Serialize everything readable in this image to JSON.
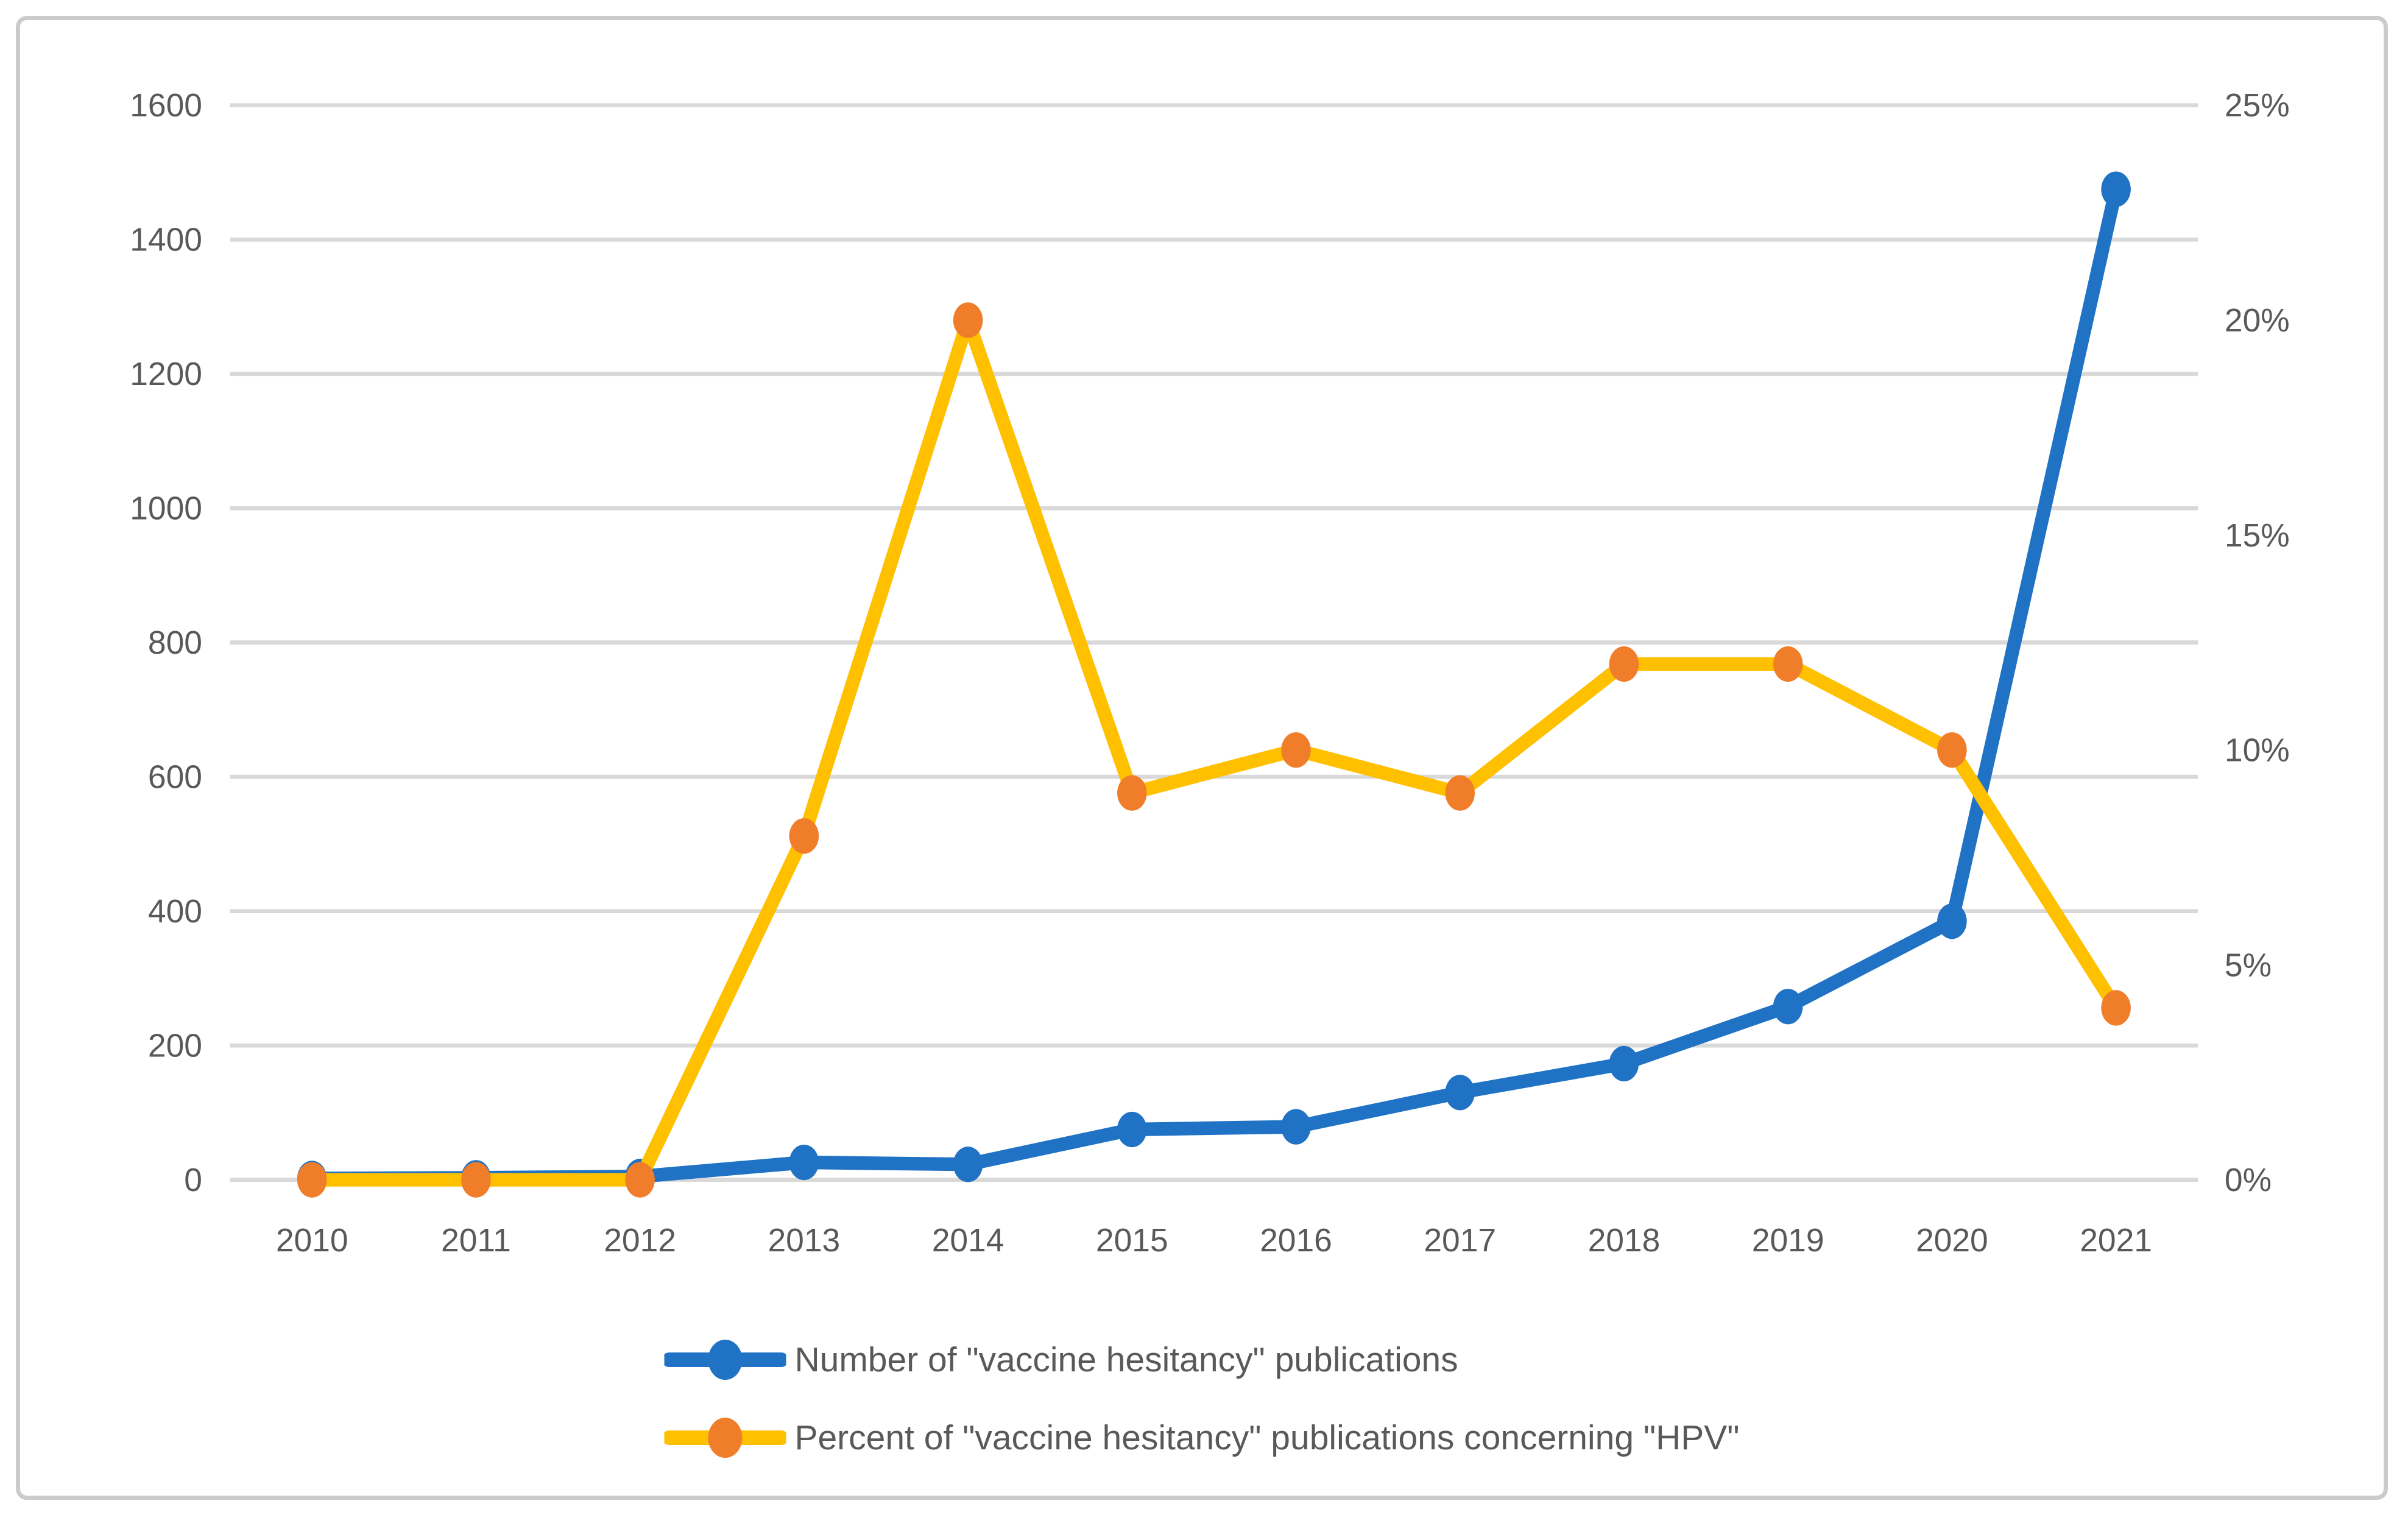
{
  "chart_data": {
    "type": "line",
    "title": "",
    "xlabel": "",
    "ylabel_left": "",
    "ylabel_right": "",
    "grid": true,
    "legend_position": "bottom-center",
    "categories": [
      "2010",
      "2011",
      "2012",
      "2013",
      "2014",
      "2015",
      "2016",
      "2017",
      "2018",
      "2019",
      "2020",
      "2021"
    ],
    "series": [
      {
        "name": "Number of \"vaccine hesitancy\" publications",
        "axis": "left",
        "color": "#1f72c4",
        "marker_color": "#1f72c4",
        "values": [
          2,
          3,
          5,
          26,
          23,
          75,
          79,
          130,
          173,
          258,
          385,
          1475
        ]
      },
      {
        "name": "Percent of \"vaccine hesitancy\" publications concerning \"HPV\"",
        "axis": "right",
        "color": "#ffc000",
        "marker_color": "#f07d29",
        "values": [
          0,
          0,
          0,
          8,
          20,
          9,
          10,
          9,
          12,
          12,
          10,
          4
        ]
      }
    ],
    "y_left": {
      "min": 0,
      "max": 1600,
      "step": 200,
      "ticks": [
        "0",
        "200",
        "400",
        "600",
        "800",
        "1000",
        "1200",
        "1400",
        "1600"
      ]
    },
    "y_right": {
      "min": 0,
      "max": 25,
      "step": 5,
      "ticks": [
        "0%",
        "5%",
        "10%",
        "15%",
        "20%",
        "25%"
      ]
    }
  },
  "styles": {
    "grid_color": "#d9d9d9",
    "text_color": "#595959",
    "frame_border_color": "#cbcbcb",
    "background": "#ffffff"
  }
}
